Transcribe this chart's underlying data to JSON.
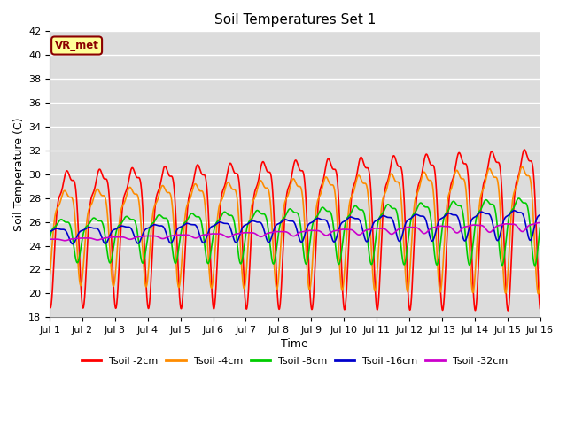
{
  "title": "Soil Temperatures Set 1",
  "xlabel": "Time",
  "ylabel": "Soil Temperature (C)",
  "xlim": [
    0,
    15
  ],
  "ylim": [
    18,
    42
  ],
  "yticks": [
    18,
    20,
    22,
    24,
    26,
    28,
    30,
    32,
    34,
    36,
    38,
    40,
    42
  ],
  "xtick_labels": [
    "Jul 1",
    "Jul 2",
    "Jul 3",
    "Jul 4",
    "Jul 5",
    "Jul 6",
    "Jul 7",
    "Jul 8",
    "Jul 9",
    "Jul 10",
    "Jul 11",
    "Jul 12",
    "Jul 13",
    "Jul 14",
    "Jul 15",
    "Jul 16"
  ],
  "bg_color": "#dcdcdc",
  "fig_bg_color": "#ffffff",
  "grid_color": "#ffffff",
  "watermark_text": "VR_met",
  "watermark_bg": "#ffff99",
  "watermark_fg": "#8b0000",
  "series_colors": {
    "Tsoil -2cm": "#ff0000",
    "Tsoil -4cm": "#ff8c00",
    "Tsoil -8cm": "#00cc00",
    "Tsoil -16cm": "#0000cc",
    "Tsoil -32cm": "#cc00cc"
  }
}
